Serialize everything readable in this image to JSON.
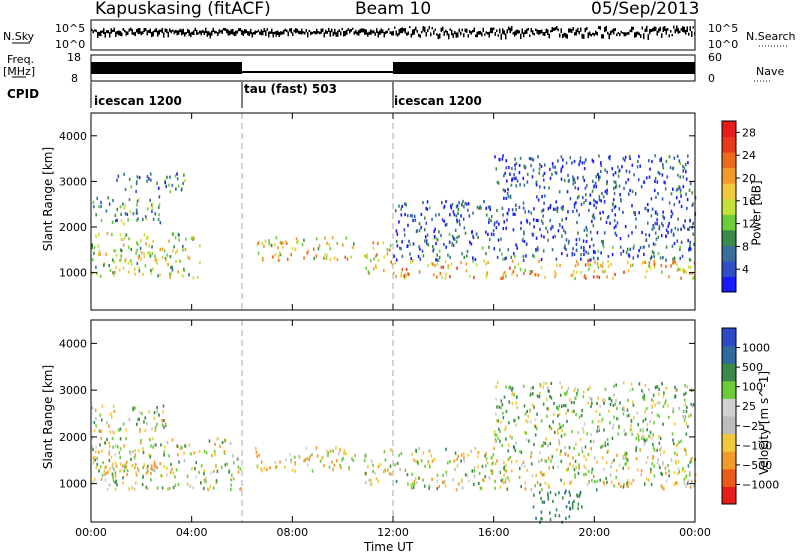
{
  "header": {
    "station": "Kapuskasing (fitACF)",
    "beam": "Beam 10",
    "date": "05/Sep/2013"
  },
  "top_panels": {
    "nsky_label": "N.Sky",
    "nsky_ticks": [
      "10^5",
      "10^0"
    ],
    "nsearch_label": "N.Search",
    "nsearch_ticks": [
      "10^5",
      "10^0"
    ],
    "freq_label_line1": "Freq.",
    "freq_label_line2": "[MHz]",
    "freq_ticks": [
      "18",
      "8"
    ],
    "nave_label": "Nave",
    "nave_ticks": [
      "60",
      "0"
    ],
    "cpid_label": "CPID"
  },
  "cpid_segments": [
    {
      "start_hour": 0,
      "end_hour": 6,
      "label": "icescan 1200"
    },
    {
      "start_hour": 6,
      "end_hour": 12,
      "label": "tau (fast) 503"
    },
    {
      "start_hour": 12,
      "end_hour": 24,
      "label": "icescan 1200"
    }
  ],
  "colors": {
    "power_scale": [
      "#1a1aff",
      "#2e4fc8",
      "#3a6f9a",
      "#3a8a4a",
      "#6ccc3a",
      "#c6e03a",
      "#f0c83a",
      "#f29a2a",
      "#ec6a1a",
      "#e83a1a",
      "#e81a1a"
    ],
    "velocity_scale": [
      "#e81a1a",
      "#ec5a1a",
      "#f29a2a",
      "#f0c83a",
      "#bdbdbd",
      "#d0d0d0",
      "#6ccc3a",
      "#3a8a4a",
      "#2e6aa0",
      "#2a4ac8"
    ],
    "ground_scatter": "#bdbdbd"
  },
  "chart_data": [
    {
      "type": "heatmap",
      "title": "",
      "xlabel": "Time UT",
      "ylabel": "Slant Range [km]",
      "xlim": [
        0,
        24
      ],
      "ylim": [
        180,
        4500
      ],
      "x_ticks": [
        "00:00",
        "04:00",
        "08:00",
        "12:00",
        "16:00",
        "20:00",
        "00:00"
      ],
      "y_ticks": [
        1000,
        2000,
        3000,
        4000
      ],
      "colorbar_label": "Power [dB]",
      "colorbar_ticks": [
        "4",
        "8",
        "12",
        "16",
        "20",
        "24",
        "28"
      ],
      "colorbar_range": [
        0,
        30
      ],
      "regions": [
        {
          "t0": 0.0,
          "t1": 4.3,
          "r0": 900,
          "r1": 1900,
          "level": 14
        },
        {
          "t0": 0.0,
          "t1": 2.8,
          "r0": 2100,
          "r1": 2700,
          "level": 9
        },
        {
          "t0": 1.0,
          "t1": 3.8,
          "r0": 2800,
          "r1": 3200,
          "level": 8
        },
        {
          "t0": 6.5,
          "t1": 10.5,
          "r0": 1300,
          "r1": 1800,
          "level": 17
        },
        {
          "t0": 10.8,
          "t1": 12.0,
          "r0": 1000,
          "r1": 1700,
          "level": 18
        },
        {
          "t0": 12.0,
          "t1": 24.0,
          "r0": 900,
          "r1": 1300,
          "level": 19
        },
        {
          "t0": 12.0,
          "t1": 24.0,
          "r0": 1300,
          "r1": 1800,
          "level": 6
        },
        {
          "t0": 12.0,
          "t1": 24.0,
          "r0": 1800,
          "r1": 2600,
          "level": 4
        },
        {
          "t0": 16.0,
          "t1": 24.0,
          "r0": 2600,
          "r1": 3600,
          "level": 4
        }
      ]
    },
    {
      "type": "heatmap",
      "title": "",
      "xlabel": "Time UT",
      "ylabel": "Slant Range [km]",
      "xlim": [
        0,
        24
      ],
      "ylim": [
        180,
        4500
      ],
      "x_ticks": [
        "00:00",
        "04:00",
        "08:00",
        "12:00",
        "16:00",
        "20:00",
        "00:00"
      ],
      "y_ticks": [
        1000,
        2000,
        3000,
        4000
      ],
      "colorbar_label": "Velocity [m s^-1]",
      "colorbar_ticks": [
        "1000",
        "500",
        "100",
        "25",
        "−25",
        "−100",
        "−500",
        "−1000"
      ],
      "regions": [
        {
          "t0": 0.0,
          "t1": 6.0,
          "r0": 900,
          "r1": 2000,
          "level": 0
        },
        {
          "t0": 0.5,
          "t1": 3.5,
          "r0": 1200,
          "r1": 1500,
          "level": -150
        },
        {
          "t0": 0.0,
          "t1": 3.0,
          "r0": 2100,
          "r1": 2700,
          "level": 20
        },
        {
          "t0": 6.5,
          "t1": 10.5,
          "r0": 1300,
          "r1": 1800,
          "level": -80
        },
        {
          "t0": 10.8,
          "t1": 12.0,
          "r0": 1000,
          "r1": 1800,
          "level": 0
        },
        {
          "t0": 12.0,
          "t1": 24.0,
          "r0": 900,
          "r1": 1800,
          "level": 0
        },
        {
          "t0": 16.0,
          "t1": 24.0,
          "r0": 1800,
          "r1": 3200,
          "level": 60
        },
        {
          "t0": 17.5,
          "t1": 19.5,
          "r0": 200,
          "r1": 900,
          "level": 400
        }
      ]
    }
  ]
}
